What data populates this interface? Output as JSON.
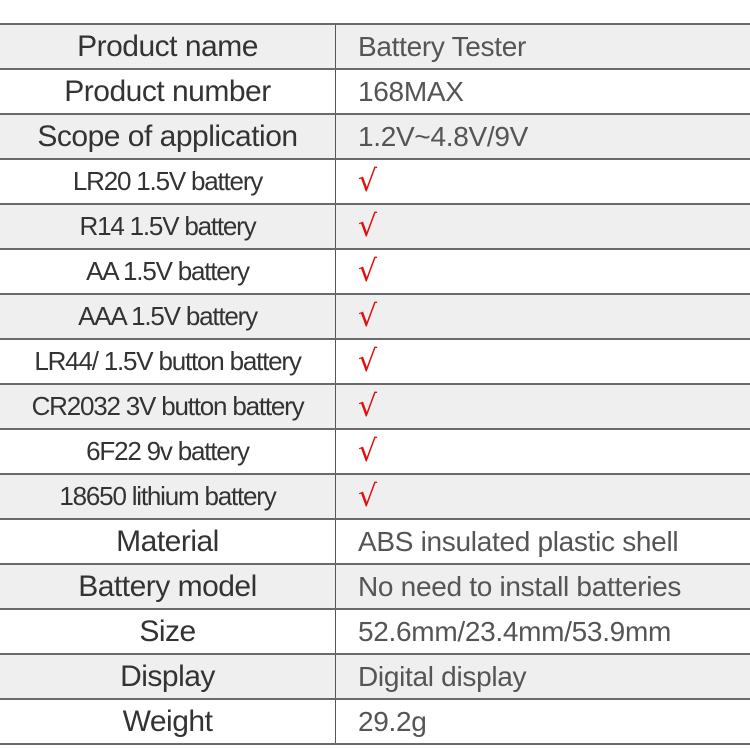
{
  "rows": [
    {
      "label": "Product name",
      "value": "Battery Tester"
    },
    {
      "label": "Product number",
      "value": "168MAX"
    },
    {
      "label": "Scope of application",
      "value": "1.2V~4.8V/9V"
    },
    {
      "label": "LR20 1.5V battery",
      "value": "√"
    },
    {
      "label": "R14 1.5V battery",
      "value": "√"
    },
    {
      "label": "AA 1.5V battery",
      "value": "√"
    },
    {
      "label": "AAA 1.5V battery",
      "value": "√"
    },
    {
      "label": "LR44/ 1.5V button battery",
      "value": "√"
    },
    {
      "label": "CR2032 3V button battery",
      "value": "√"
    },
    {
      "label": "6F22 9v battery",
      "value": "√"
    },
    {
      "label": "18650 lithium battery",
      "value": "√"
    },
    {
      "label": "Material",
      "value": "ABS insulated plastic shell"
    },
    {
      "label": "Battery model",
      "value": "No need to install batteries"
    },
    {
      "label": "Size",
      "value": "52.6mm/23.4mm/53.9mm"
    },
    {
      "label": "Display",
      "value": "Digital display"
    },
    {
      "label": "Weight",
      "value": "29.2g"
    }
  ],
  "colors": {
    "check": "#e01010",
    "stripe": "#efefef"
  }
}
